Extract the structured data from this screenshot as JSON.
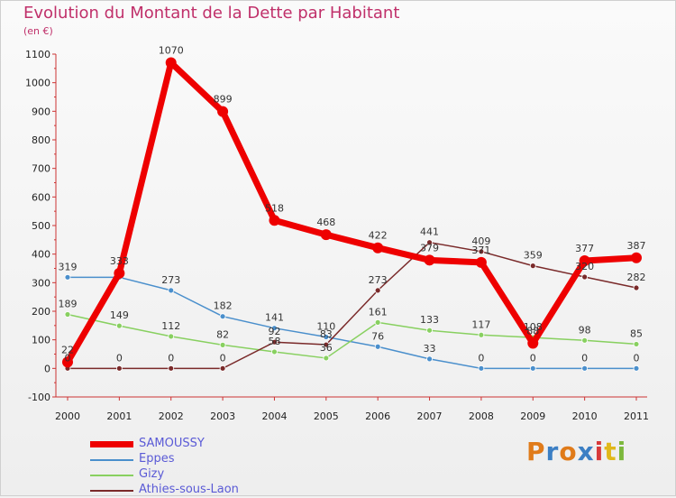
{
  "header": {
    "title": "Evolution du Montant de la Dette par Habitant",
    "subtitle": "(en €)"
  },
  "brand": {
    "text": "Proxiti",
    "colors": [
      "#e07b1a",
      "#3c7fc4",
      "#e07b1a",
      "#3c7fc4",
      "#d83a3a",
      "#e0b81a",
      "#7cb83c"
    ]
  },
  "chart_data": {
    "type": "line",
    "title": "Evolution du Montant de la Dette par Habitant",
    "subtitle": "(en €)",
    "xlabel": "",
    "ylabel": "",
    "x": [
      "2000",
      "2001",
      "2002",
      "2003",
      "2004",
      "2005",
      "2006",
      "2007",
      "2008",
      "2009",
      "2010",
      "2011"
    ],
    "ylim": [
      -100,
      1100
    ],
    "yticks": [
      -100,
      0,
      100,
      200,
      300,
      400,
      500,
      600,
      700,
      800,
      900,
      1000,
      1100
    ],
    "grid": false,
    "legend_position": "bottom-left",
    "series": [
      {
        "name": "SAMOUSSY",
        "color": "#ee0000",
        "width": 7,
        "marker_r": 6,
        "values": [
          22,
          333,
          1070,
          899,
          518,
          468,
          422,
          379,
          371,
          88,
          377,
          387
        ],
        "labels": [
          "22",
          "333",
          "1070",
          "899",
          "518",
          "468",
          "422",
          "379",
          "371",
          "88",
          "377",
          "387"
        ]
      },
      {
        "name": "Eppes",
        "color": "#4a8fcc",
        "width": 1.5,
        "marker_r": 3,
        "values": [
          319,
          319,
          273,
          182,
          141,
          110,
          76,
          33,
          0,
          0,
          0,
          0
        ],
        "labels": [
          "319",
          "",
          "273",
          "182",
          "141",
          "110",
          "76",
          "33",
          "0",
          "0",
          "0",
          "0"
        ]
      },
      {
        "name": "Gizy",
        "color": "#88d060",
        "width": 1.5,
        "marker_r": 3,
        "values": [
          189,
          149,
          112,
          82,
          58,
          36,
          161,
          133,
          117,
          108,
          98,
          85
        ],
        "labels": [
          "189",
          "149",
          "112",
          "82",
          "58",
          "36",
          "161",
          "133",
          "117",
          "108",
          "98",
          "85"
        ]
      },
      {
        "name": "Athies-sous-Laon",
        "color": "#7a2a2a",
        "width": 1.5,
        "marker_r": 3,
        "values": [
          0,
          0,
          0,
          0,
          92,
          83,
          273,
          441,
          409,
          359,
          320,
          282
        ],
        "labels": [
          "0",
          "0",
          "0",
          "0",
          "92",
          "83",
          "273",
          "441",
          "409",
          "359",
          "320",
          "282"
        ]
      }
    ]
  }
}
